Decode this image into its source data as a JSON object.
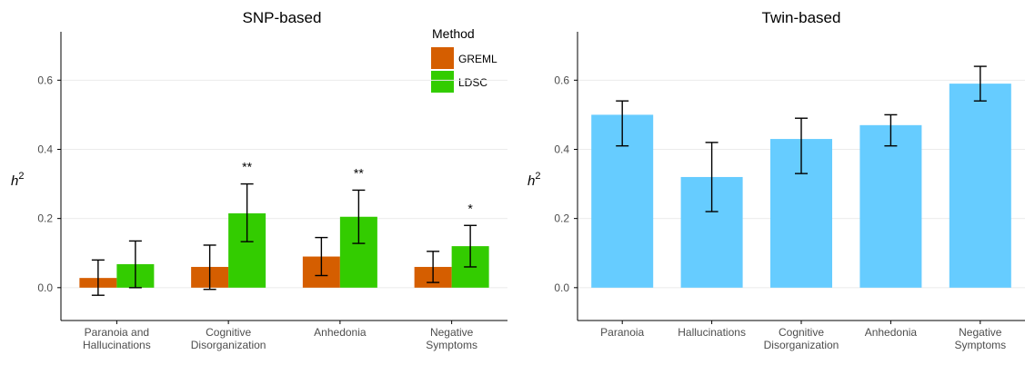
{
  "chart_data": [
    {
      "type": "bar",
      "title": "SNP-based",
      "ylabel_base": "h",
      "ylabel_sup": "2",
      "xlabel": "",
      "ylim": [
        -0.095,
        0.74
      ],
      "yticks": [
        "0.0",
        "0.2",
        "0.4",
        "0.6"
      ],
      "ytick_values": [
        0,
        0.2,
        0.4,
        0.6
      ],
      "categories": [
        [
          "Paranoia and",
          "Hallucinations"
        ],
        [
          "Cognitive",
          "Disorganization"
        ],
        [
          "Anhedonia"
        ],
        [
          "Negative",
          "Symptoms"
        ]
      ],
      "legend": {
        "title": "Method",
        "position": "top-right"
      },
      "series": [
        {
          "name": "GREML",
          "color": "#d55e00",
          "values": [
            0.028,
            0.06,
            0.09,
            0.06
          ],
          "err_low": [
            -0.022,
            -0.005,
            0.035,
            0.015
          ],
          "err_high": [
            0.08,
            0.123,
            0.145,
            0.105
          ]
        },
        {
          "name": "LDSC",
          "color": "#33cc00",
          "values": [
            0.068,
            0.215,
            0.205,
            0.12
          ],
          "err_low": [
            0.0,
            0.133,
            0.128,
            0.06
          ],
          "err_high": [
            0.135,
            0.3,
            0.282,
            0.18
          ]
        }
      ],
      "annotations": [
        "",
        "**",
        "**",
        "*"
      ]
    },
    {
      "type": "bar",
      "title": "Twin-based",
      "ylabel_base": "h",
      "ylabel_sup": "2",
      "xlabel": "",
      "ylim": [
        -0.095,
        0.74
      ],
      "yticks": [
        "0.0",
        "0.2",
        "0.4",
        "0.6"
      ],
      "ytick_values": [
        0,
        0.2,
        0.4,
        0.6
      ],
      "categories": [
        [
          "Paranoia"
        ],
        [
          "Hallucinations"
        ],
        [
          "Cognitive",
          "Disorganization"
        ],
        [
          "Anhedonia"
        ],
        [
          "Negative",
          "Symptoms"
        ]
      ],
      "series": [
        {
          "color": "#66ccff",
          "values": [
            0.5,
            0.32,
            0.43,
            0.47,
            0.59
          ],
          "err_low": [
            0.41,
            0.22,
            0.33,
            0.41,
            0.54
          ],
          "err_high": [
            0.54,
            0.42,
            0.49,
            0.5,
            0.64
          ]
        }
      ]
    }
  ]
}
